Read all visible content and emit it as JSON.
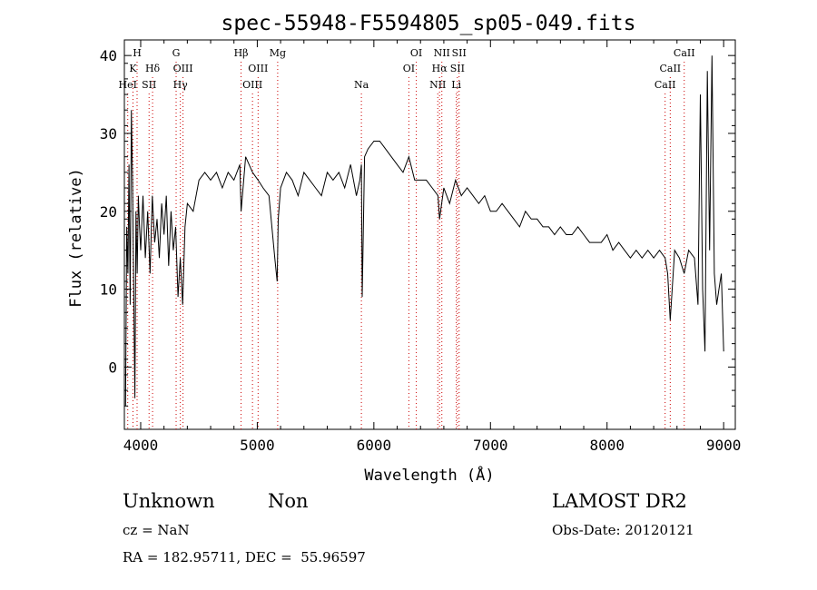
{
  "chart_data": {
    "type": "line",
    "title": "spec-55948-F5594805_sp05-049.fits",
    "xlabel": "Wavelength (Å)",
    "ylabel": "Flux (relative)",
    "xlim": [
      3860,
      9100
    ],
    "ylim": [
      -8,
      42
    ],
    "xticks": [
      4000,
      5000,
      6000,
      7000,
      8000,
      9000
    ],
    "yticks": [
      0,
      10,
      20,
      30,
      40
    ],
    "grid": false,
    "line_color": "#000000",
    "marker_color": "#cc0000",
    "spectrum": {
      "x": [
        3870,
        3880,
        3890,
        3900,
        3910,
        3920,
        3930,
        3940,
        3950,
        3960,
        3970,
        3980,
        3990,
        4000,
        4020,
        4040,
        4060,
        4080,
        4100,
        4120,
        4140,
        4160,
        4180,
        4200,
        4220,
        4240,
        4260,
        4280,
        4300,
        4320,
        4340,
        4360,
        4380,
        4400,
        4450,
        4500,
        4550,
        4600,
        4650,
        4700,
        4750,
        4800,
        4850,
        4861,
        4900,
        4959,
        5007,
        5050,
        5100,
        5150,
        5170,
        5175,
        5180,
        5200,
        5250,
        5300,
        5350,
        5400,
        5450,
        5500,
        5550,
        5600,
        5650,
        5700,
        5750,
        5800,
        5850,
        5880,
        5893,
        5900,
        5920,
        5950,
        6000,
        6050,
        6100,
        6150,
        6200,
        6250,
        6300,
        6350,
        6400,
        6450,
        6500,
        6550,
        6563,
        6600,
        6650,
        6700,
        6750,
        6800,
        6850,
        6900,
        6950,
        7000,
        7050,
        7100,
        7150,
        7200,
        7250,
        7300,
        7350,
        7400,
        7450,
        7500,
        7550,
        7600,
        7650,
        7700,
        7750,
        7800,
        7850,
        7900,
        7950,
        8000,
        8050,
        8100,
        8150,
        8200,
        8250,
        8300,
        8350,
        8400,
        8450,
        8498,
        8520,
        8542,
        8580,
        8620,
        8662,
        8700,
        8750,
        8780,
        8800,
        8820,
        8840,
        8860,
        8880,
        8900,
        8920,
        8940,
        8960,
        8980,
        9000
      ],
      "y": [
        -5,
        18,
        12,
        26,
        8,
        33,
        24,
        10,
        -4,
        20,
        12,
        22,
        18,
        15,
        22,
        14,
        20,
        12,
        22,
        16,
        19,
        14,
        21,
        17,
        22,
        13,
        20,
        15,
        18,
        9,
        14,
        8,
        18,
        21,
        20,
        24,
        25,
        24,
        25,
        23,
        25,
        24,
        26,
        20,
        27,
        25,
        24,
        23,
        22,
        14,
        11,
        15,
        19,
        23,
        25,
        24,
        22,
        25,
        24,
        23,
        22,
        25,
        24,
        25,
        23,
        26,
        22,
        24,
        26,
        9,
        27,
        28,
        29,
        29,
        28,
        27,
        26,
        25,
        27,
        24,
        24,
        24,
        23,
        22,
        19,
        23,
        21,
        24,
        22,
        23,
        22,
        21,
        22,
        20,
        20,
        21,
        20,
        19,
        18,
        20,
        19,
        19,
        18,
        18,
        17,
        18,
        17,
        17,
        18,
        17,
        16,
        16,
        16,
        17,
        15,
        16,
        15,
        14,
        15,
        14,
        15,
        14,
        15,
        14,
        12,
        6,
        15,
        14,
        12,
        15,
        14,
        8,
        35,
        10,
        2,
        38,
        15,
        40,
        12,
        8,
        10,
        12,
        2
      ],
      "exact_values": false
    },
    "lines": [
      {
        "wavelength": 3889,
        "label": "HeI",
        "tier": 3
      },
      {
        "wavelength": 3934,
        "label": "K",
        "tier": 2
      },
      {
        "wavelength": 3969,
        "label": "H",
        "tier": 1
      },
      {
        "wavelength": 4072,
        "label": "SII",
        "tier": 3
      },
      {
        "wavelength": 4102,
        "label": "Hδ",
        "tier": 2
      },
      {
        "wavelength": 4304,
        "label": "G",
        "tier": 1
      },
      {
        "wavelength": 4340,
        "label": "Hγ",
        "tier": 3
      },
      {
        "wavelength": 4363,
        "label": "OIII",
        "tier": 2
      },
      {
        "wavelength": 4861,
        "label": "Hβ",
        "tier": 1
      },
      {
        "wavelength": 4959,
        "label": "OIII",
        "tier": 3
      },
      {
        "wavelength": 5007,
        "label": "OIII",
        "tier": 2
      },
      {
        "wavelength": 5175,
        "label": "Mg",
        "tier": 1
      },
      {
        "wavelength": 5893,
        "label": "Na",
        "tier": 3
      },
      {
        "wavelength": 6300,
        "label": "OI",
        "tier": 2
      },
      {
        "wavelength": 6364,
        "label": "OI",
        "tier": 1
      },
      {
        "wavelength": 6548,
        "label": "NII",
        "tier": 3
      },
      {
        "wavelength": 6563,
        "label": "Hα",
        "tier": 2
      },
      {
        "wavelength": 6583,
        "label": "NII",
        "tier": 1
      },
      {
        "wavelength": 6707,
        "label": "Li",
        "tier": 3
      },
      {
        "wavelength": 6716,
        "label": "SII",
        "tier": 2
      },
      {
        "wavelength": 6731,
        "label": "SII",
        "tier": 1
      },
      {
        "wavelength": 8498,
        "label": "CaII",
        "tier": 3
      },
      {
        "wavelength": 8542,
        "label": "CaII",
        "tier": 2
      },
      {
        "wavelength": 8662,
        "label": "CaII",
        "tier": 1
      }
    ]
  },
  "info": {
    "class_text": "Unknown",
    "subclass_text": "Non",
    "survey_text": "LAMOST DR2",
    "cz_text": "cz = NaN",
    "obs_date_text": "Obs-Date: 20120121",
    "radec_text": "RA = 182.95711, DEC =  55.96597"
  }
}
